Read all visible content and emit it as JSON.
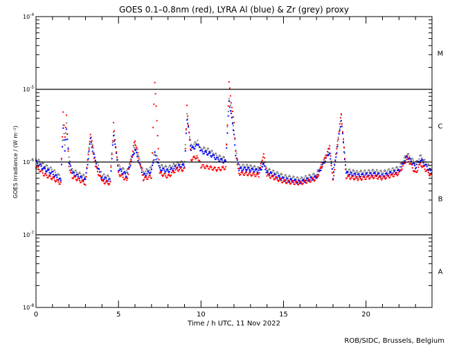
{
  "chart_data": {
    "type": "scatter",
    "title": "GOES 0.1–0.8nm (red), LYRA Al (blue) & Zr (grey) proxy",
    "xlabel": "Time / h UTC, 11 Nov 2022",
    "ylabel": "GOES Irradiance / (W m⁻²)",
    "xlim": [
      0,
      24
    ],
    "ylim": [
      1e-08,
      0.0001
    ],
    "yscale": "log",
    "x_ticks": [
      "0",
      "5",
      "10",
      "15",
      "20"
    ],
    "x_tick_values": [
      0,
      5,
      10,
      15,
      20
    ],
    "y_ticks": [
      {
        "value": 0.0001,
        "base": "10",
        "exp": "-4"
      },
      {
        "value": 1e-05,
        "base": "10",
        "exp": "-5"
      },
      {
        "value": 1e-06,
        "base": "10",
        "exp": "-6"
      },
      {
        "value": 1e-07,
        "base": "10",
        "exp": "-7"
      },
      {
        "value": 1e-08,
        "base": "10",
        "exp": "-8"
      }
    ],
    "class_lines": [
      1e-05,
      1e-06,
      1e-07
    ],
    "class_labels": [
      {
        "label": "M",
        "center": 3.16e-05
      },
      {
        "label": "C",
        "center": 3.16e-06
      },
      {
        "label": "B",
        "center": 3.16e-07
      },
      {
        "label": "A",
        "center": 3.16e-08
      }
    ],
    "x": [
      0,
      0.5,
      1.0,
      1.5,
      1.65,
      1.75,
      1.85,
      2.0,
      2.2,
      3.0,
      3.3,
      3.6,
      4.0,
      4.5,
      4.7,
      5.0,
      5.5,
      6.0,
      6.5,
      7.0,
      7.2,
      7.5,
      8.0,
      8.5,
      9.0,
      9.15,
      9.4,
      9.8,
      10.0,
      10.5,
      11.0,
      11.5,
      11.7,
      12.0,
      12.1,
      12.3,
      12.8,
      13.5,
      13.8,
      14.0,
      15.0,
      16.0,
      17.0,
      17.8,
      18.0,
      18.5,
      18.8,
      19.5,
      20.5,
      21.0,
      22.0,
      22.5,
      23.0,
      23.3,
      24.0
    ],
    "series": [
      {
        "name": "Zr proxy",
        "color": "#808080",
        "values": [
          1.1e-06,
          9e-07,
          7.8e-07,
          6.1e-07,
          3.3e-06,
          1.7e-06,
          3.3e-06,
          1.1e-06,
          7.7e-07,
          6.2e-07,
          2.2e-06,
          1.1e-06,
          6.6e-07,
          6.1e-07,
          2.6e-06,
          8.8e-07,
          7.2e-07,
          1.65e-06,
          7.2e-07,
          8.3e-07,
          1.4e-06,
          8.8e-07,
          8.3e-07,
          9.4e-07,
          1e-06,
          4.4e-06,
          1.65e-06,
          1.9e-06,
          1.55e-06,
          1.45e-06,
          1.2e-06,
          1.1e-06,
          7.7e-06,
          2.7e-06,
          1.4e-06,
          8.8e-07,
          8.8e-07,
          8.2e-07,
          1e-06,
          7.9e-07,
          6.4e-07,
          5.8e-07,
          6.8e-07,
          1.5e-06,
          6.8e-07,
          4.2e-06,
          7.7e-07,
          7.2e-07,
          7.5e-07,
          7.2e-07,
          8.3e-07,
          1.3e-06,
          9.4e-07,
          1.2e-06,
          7.7e-07
        ]
      },
      {
        "name": "LYRA Al proxy",
        "color": "#0000ff",
        "values": [
          1e-06,
          8e-07,
          7e-07,
          5.5e-07,
          3e-06,
          1.5e-06,
          3e-06,
          1e-06,
          7e-07,
          5.6e-07,
          2e-06,
          1e-06,
          6e-07,
          5.5e-07,
          2.4e-06,
          8e-07,
          6.5e-07,
          1.5e-06,
          6.5e-07,
          7.5e-07,
          1.3e-06,
          8e-07,
          7.5e-07,
          8.5e-07,
          9e-07,
          4e-06,
          1.5e-06,
          1.7e-06,
          1.4e-06,
          1.3e-06,
          1.1e-06,
          1e-06,
          7e-06,
          2.5e-06,
          1.3e-06,
          8e-07,
          8e-07,
          7.5e-07,
          9e-07,
          7.2e-07,
          5.8e-07,
          5.3e-07,
          6.2e-07,
          1.4e-06,
          6.2e-07,
          3.8e-06,
          7e-07,
          6.5e-07,
          6.8e-07,
          6.5e-07,
          7.5e-07,
          1.2e-06,
          8.5e-07,
          1.1e-06,
          7e-07
        ]
      },
      {
        "name": "GOES 0.1-0.8nm",
        "color": "#ff0000",
        "values": [
          8.8e-07,
          6.7e-07,
          6e-07,
          5.1e-07,
          4.6e-06,
          2.1e-06,
          4.3e-06,
          8.8e-07,
          6.3e-07,
          5.1e-07,
          2.5e-06,
          8.8e-07,
          5.4e-07,
          5.1e-07,
          3.3e-06,
          7e-07,
          5.6e-07,
          2e-06,
          5.9e-07,
          6.3e-07,
          1.27e-05,
          7e-07,
          6.3e-07,
          7.9e-07,
          7.9e-07,
          5.9e-06,
          1.09e-06,
          1.2e-06,
          8.8e-07,
          8.4e-07,
          7.9e-07,
          8.4e-07,
          1.2e-05,
          3.3e-06,
          1.36e-06,
          7e-07,
          6.9e-07,
          6.6e-07,
          1.36e-06,
          6.6e-07,
          5.4e-07,
          5.1e-07,
          5.9e-07,
          1.6e-06,
          5.6e-07,
          4.7e-06,
          6.3e-07,
          5.9e-07,
          6.3e-07,
          6e-07,
          7e-07,
          1.14e-06,
          7e-07,
          9.4e-07,
          6.3e-07
        ]
      }
    ],
    "credit": "ROB/SIDC, Brussels, Belgium"
  }
}
